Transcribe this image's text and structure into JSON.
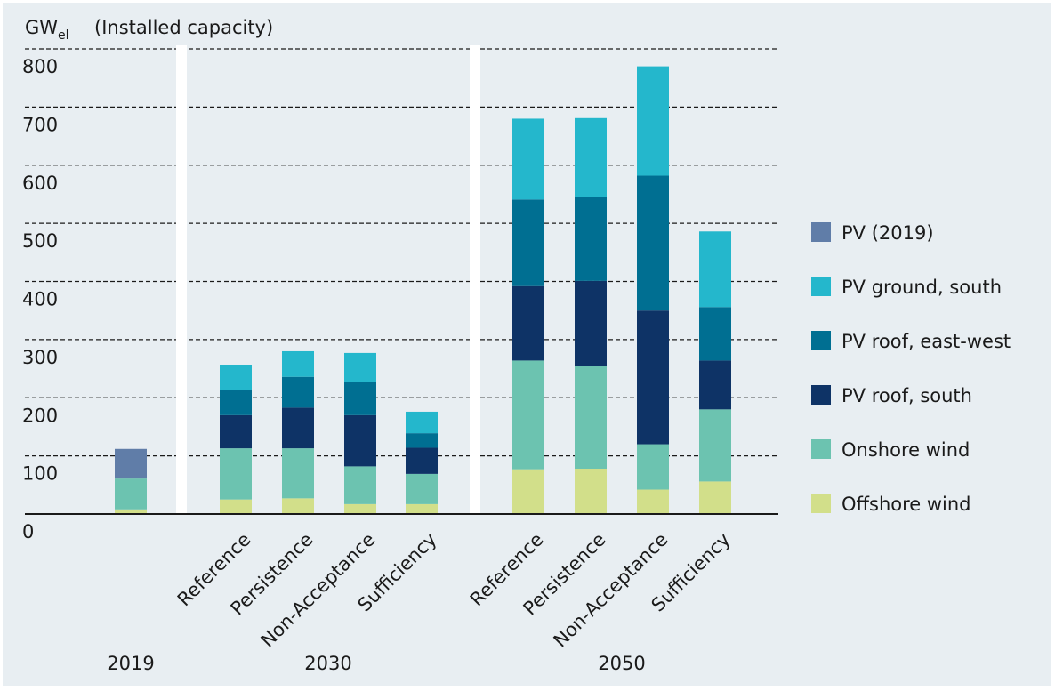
{
  "chart_data": {
    "type": "bar",
    "stacked": true,
    "title": "",
    "unit_base": "GW",
    "unit_sub": "el",
    "unit_note": "(Installed capacity)",
    "ylim": [
      0,
      800
    ],
    "yticks": [
      0,
      100,
      200,
      300,
      400,
      500,
      600,
      700,
      800
    ],
    "grid": true,
    "legend_position": "right",
    "groups": [
      {
        "label": "2019",
        "categories": [
          ""
        ]
      },
      {
        "label": "2030",
        "categories": [
          "Reference",
          "Persistence",
          "Non-Acceptance",
          "Sufficiency"
        ]
      },
      {
        "label": "2050",
        "categories": [
          "Reference",
          "Persistence",
          "Non-Acceptance",
          "Sufficiency"
        ]
      }
    ],
    "series": [
      {
        "name": "Offshore wind",
        "color": "#d2df8a",
        "values": [
          8,
          25,
          27,
          17,
          17,
          77,
          78,
          42,
          56
        ]
      },
      {
        "name": "Onshore wind",
        "color": "#6cc3b0",
        "values": [
          53,
          88,
          86,
          65,
          52,
          187,
          176,
          78,
          124
        ]
      },
      {
        "name": "PV roof, south",
        "color": "#0e3366",
        "values": [
          0,
          57,
          70,
          88,
          45,
          128,
          147,
          230,
          84
        ]
      },
      {
        "name": "PV roof, east-west",
        "color": "#006f92",
        "values": [
          0,
          43,
          53,
          57,
          25,
          149,
          144,
          232,
          92
        ]
      },
      {
        "name": "PV ground, south",
        "color": "#24b7cc",
        "values": [
          0,
          44,
          44,
          50,
          37,
          139,
          136,
          188,
          130
        ]
      },
      {
        "name": "PV (2019)",
        "color": "#607da8",
        "values": [
          51,
          0,
          0,
          0,
          0,
          0,
          0,
          0,
          0
        ]
      }
    ]
  }
}
